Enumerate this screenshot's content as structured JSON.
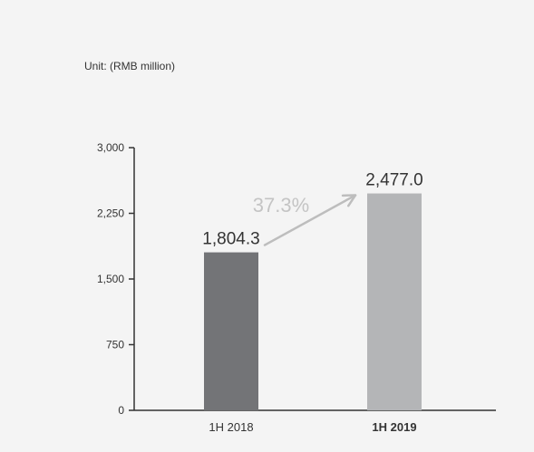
{
  "chart_data": {
    "type": "bar",
    "unit_label": "Unit: (RMB million)",
    "categories": [
      "1H 2018",
      "1H 2019"
    ],
    "highlight_category": "1H 2019",
    "values": [
      1804.3,
      2477.0
    ],
    "value_labels": [
      "1,804.3",
      "2,477.0"
    ],
    "yticks": [
      0,
      750,
      1500,
      2250,
      3000
    ],
    "ytick_labels": [
      "0",
      "750",
      "1,500",
      "2,250",
      "3,000"
    ],
    "ylim": [
      0,
      3000
    ],
    "grid": false,
    "growth_annotation": {
      "label": "37.3%",
      "from": "1H 2018",
      "to": "1H 2019",
      "arrow_color": "#bdbdbd",
      "label_color": "#c4c4c4"
    },
    "colors": [
      "#737477",
      "#b4b5b7"
    ],
    "axis_color": "#333333"
  }
}
